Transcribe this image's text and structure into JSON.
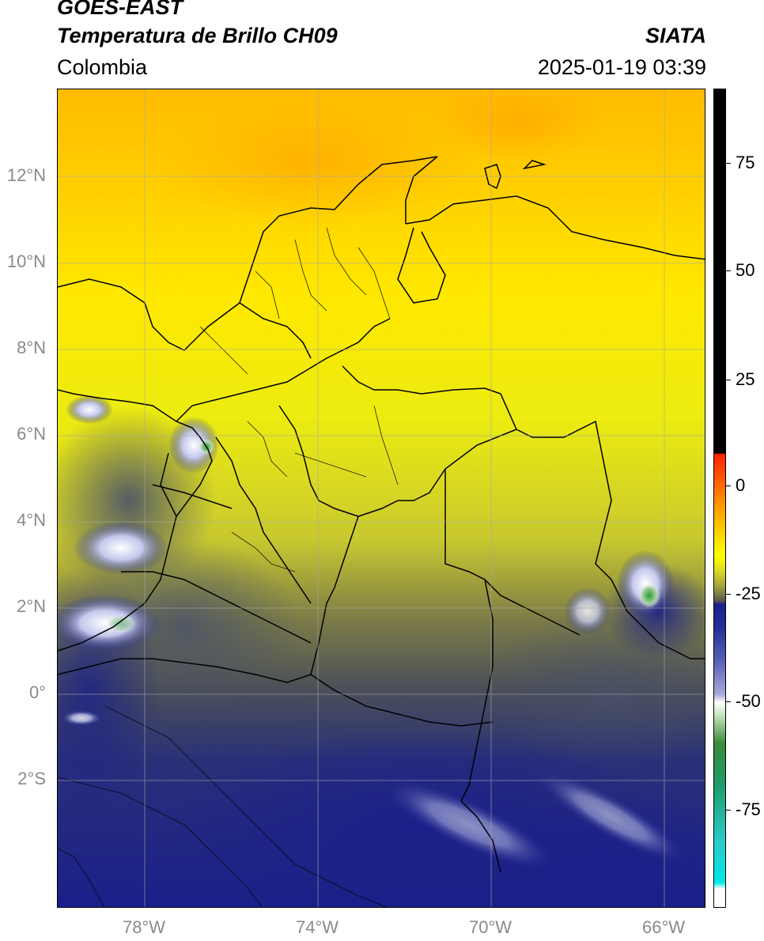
{
  "header": {
    "satellite": "GOES-EAST",
    "product": "Temperatura de Brillo CH09",
    "source": "SIATA",
    "region": "Colombia",
    "datetime": "2025-01-19 03:39"
  },
  "map": {
    "lat_labels": [
      "12°N",
      "10°N",
      "8°N",
      "6°N",
      "4°N",
      "2°N",
      "0°",
      "2°S"
    ],
    "lon_labels": [
      "78°W",
      "74°W",
      "70°W",
      "66°W"
    ]
  },
  "colorbar": {
    "labels": [
      "75",
      "50",
      "25",
      "0",
      "-25",
      "-50",
      "-75"
    ],
    "range": [
      -95,
      90
    ]
  }
}
